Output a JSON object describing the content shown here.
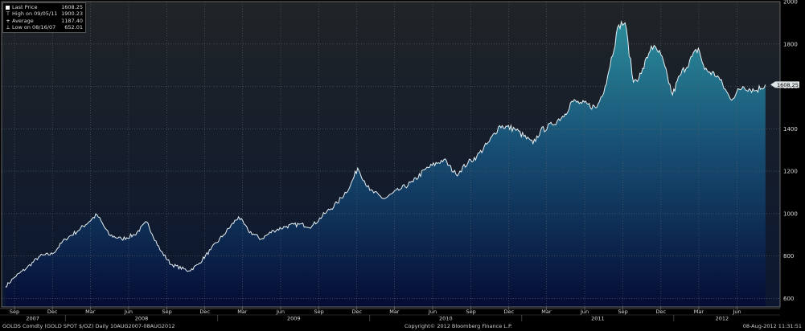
{
  "chart_data": {
    "type": "area",
    "y_axis_side": "right",
    "ylim": [
      560,
      2000
    ],
    "yticks": [
      600,
      800,
      1000,
      1200,
      1400,
      1600,
      1800,
      2000
    ],
    "x_months": [
      "Sep",
      "Dec",
      "Mar",
      "Jun",
      "Sep",
      "Dec",
      "Mar",
      "Jun",
      "Sep",
      "Dec",
      "Mar",
      "Jun",
      "Sep",
      "Dec",
      "Mar",
      "Jun",
      "Sep",
      "Dec",
      "Mar",
      "Jun"
    ],
    "x_years": [
      "2007",
      "2008",
      "2009",
      "2010",
      "2011",
      "2012"
    ],
    "last_price_label": "1608.25",
    "series": [
      {
        "x": [
          "2007-08-10",
          "2007-09-01",
          "2007-10-01",
          "2007-11-01",
          "2007-12-01",
          "2008-01-01",
          "2008-02-01",
          "2008-03-17",
          "2008-04-15",
          "2008-05-15",
          "2008-06-15",
          "2008-07-15",
          "2008-08-15",
          "2008-09-11",
          "2008-10-24",
          "2008-11-15",
          "2008-12-15",
          "2009-01-15",
          "2009-02-20",
          "2009-03-15",
          "2009-04-15",
          "2009-05-15",
          "2009-06-15",
          "2009-07-15",
          "2009-08-15",
          "2009-09-15",
          "2009-10-15",
          "2009-11-15",
          "2009-12-03",
          "2010-01-01",
          "2010-02-05",
          "2010-03-15",
          "2010-04-15",
          "2010-05-15",
          "2010-06-28",
          "2010-07-27",
          "2010-08-25",
          "2010-09-15",
          "2010-10-15",
          "2010-11-09",
          "2010-12-15",
          "2011-01-28",
          "2011-02-15",
          "2011-03-15",
          "2011-04-15",
          "2011-05-01",
          "2011-05-25",
          "2011-06-30",
          "2011-07-20",
          "2011-08-22",
          "2011-09-06",
          "2011-09-26",
          "2011-10-15",
          "2011-11-08",
          "2011-12-01",
          "2011-12-29",
          "2012-01-15",
          "2012-02-29",
          "2012-03-15",
          "2012-04-15",
          "2012-05-16",
          "2012-06-15",
          "2012-07-15",
          "2012-08-08"
        ],
        "y": [
          655,
          700,
          745,
          800,
          810,
          880,
          920,
          995,
          900,
          880,
          900,
          960,
          830,
          760,
          730,
          760,
          830,
          900,
          985,
          920,
          880,
          920,
          940,
          950,
          940,
          1000,
          1050,
          1130,
          1215,
          1110,
          1070,
          1115,
          1150,
          1210,
          1255,
          1185,
          1240,
          1270,
          1340,
          1415,
          1400,
          1330,
          1390,
          1420,
          1470,
          1530,
          1520,
          1500,
          1600,
          1890,
          1900,
          1620,
          1660,
          1790,
          1750,
          1560,
          1650,
          1780,
          1680,
          1650,
          1540,
          1600,
          1580,
          1608.25
        ],
        "color": "#4fd3d8"
      }
    ]
  },
  "legend": {
    "last_price_label": "Last Price",
    "last_price_value": "1608.25",
    "high_label": "High on 09/05/11",
    "high_value": "1900.23",
    "average_label": "Average",
    "average_value": "1187.40",
    "low_label": "Low on 08/16/07",
    "low_value": "652.01"
  },
  "footer": {
    "security": "GOLDS Comdty (GOLD SPOT $/OZ)  Daily 10AUG2007-08AUG2012",
    "copyright": "Copyright© 2012 Bloomberg Finance L.P.",
    "timestamp": "08-Aug-2012 11:31:51"
  },
  "colors": {
    "background_top": "#202427",
    "background_bottom": "#0d1b33",
    "area_top": "#2a8d9c",
    "area_bottom": "#071038",
    "line": "#e6f0f2",
    "grid": "#5a6068"
  }
}
